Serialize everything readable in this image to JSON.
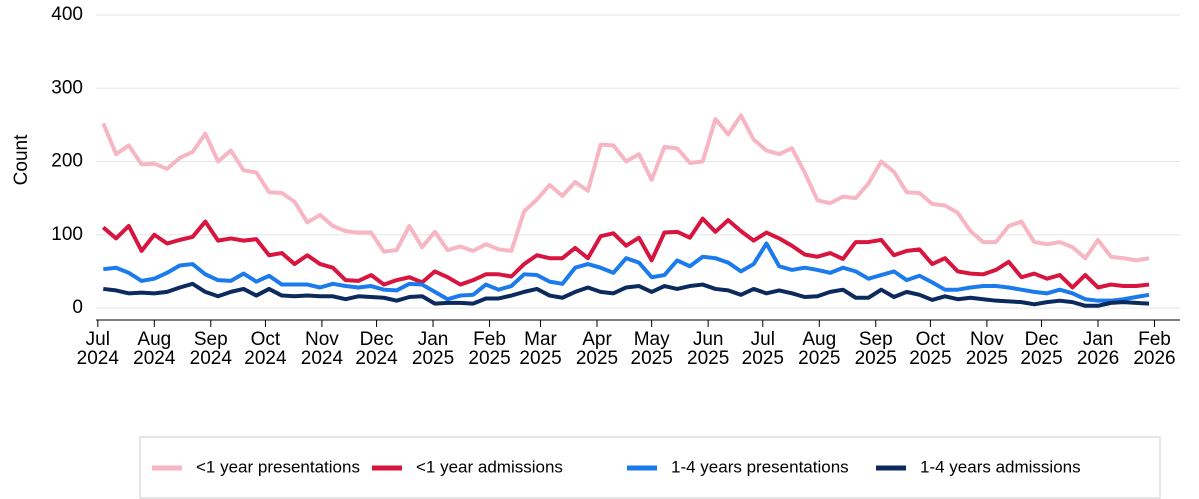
{
  "chart_data": {
    "type": "line",
    "y_label": "Count",
    "x": [
      "2024-07-04",
      "2024-07-11",
      "2024-07-18",
      "2024-07-25",
      "2024-08-01",
      "2024-08-08",
      "2024-08-15",
      "2024-08-22",
      "2024-08-29",
      "2024-09-05",
      "2024-09-12",
      "2024-09-19",
      "2024-09-26",
      "2024-10-03",
      "2024-10-10",
      "2024-10-17",
      "2024-10-24",
      "2024-10-31",
      "2024-11-07",
      "2024-11-14",
      "2024-11-21",
      "2024-11-28",
      "2024-12-05",
      "2024-12-12",
      "2024-12-19",
      "2024-12-26",
      "2025-01-02",
      "2025-01-09",
      "2025-01-16",
      "2025-01-23",
      "2025-01-30",
      "2025-02-06",
      "2025-02-13",
      "2025-02-20",
      "2025-02-27",
      "2025-03-06",
      "2025-03-13",
      "2025-03-20",
      "2025-03-27",
      "2025-04-03",
      "2025-04-10",
      "2025-04-17",
      "2025-04-24",
      "2025-05-01",
      "2025-05-08",
      "2025-05-15",
      "2025-05-22",
      "2025-05-29",
      "2025-06-05",
      "2025-06-12",
      "2025-06-19",
      "2025-06-26",
      "2025-07-03",
      "2025-07-10",
      "2025-07-17",
      "2025-07-24",
      "2025-07-31",
      "2025-08-07",
      "2025-08-14",
      "2025-08-21",
      "2025-08-28",
      "2025-09-04",
      "2025-09-11",
      "2025-09-18",
      "2025-09-25",
      "2025-10-02",
      "2025-10-09",
      "2025-10-16",
      "2025-10-23",
      "2025-10-30",
      "2025-11-06",
      "2025-11-13",
      "2025-11-20",
      "2025-11-27",
      "2025-12-04",
      "2025-12-11",
      "2025-12-18",
      "2025-12-25",
      "2026-01-01",
      "2026-01-08",
      "2026-01-15",
      "2026-01-22",
      "2026-01-29"
    ],
    "series": [
      {
        "name": "<1 year presentations",
        "color": "#f7b6c3",
        "values": [
          252,
          210,
          222,
          196,
          197,
          190,
          205,
          213,
          238,
          200,
          215,
          188,
          185,
          158,
          157,
          145,
          117,
          127,
          112,
          105,
          103,
          103,
          77,
          79,
          112,
          83,
          104,
          79,
          84,
          78,
          87,
          80,
          78,
          132,
          148,
          168,
          153,
          172,
          160,
          223,
          222,
          200,
          210,
          175,
          220,
          218,
          198,
          200,
          258,
          237,
          263,
          230,
          215,
          210,
          218,
          185,
          147,
          143,
          152,
          150,
          170,
          200,
          186,
          158,
          157,
          142,
          140,
          130,
          105,
          90,
          90,
          112,
          118,
          90,
          87,
          90,
          83,
          68,
          93,
          70,
          68,
          65,
          68
        ]
      },
      {
        "name": "<1 year admissions",
        "color": "#d7153e",
        "values": [
          110,
          95,
          112,
          78,
          100,
          88,
          93,
          97,
          118,
          92,
          95,
          92,
          94,
          72,
          75,
          60,
          72,
          60,
          55,
          38,
          37,
          45,
          32,
          38,
          42,
          35,
          50,
          42,
          32,
          38,
          46,
          46,
          43,
          60,
          72,
          68,
          68,
          82,
          68,
          98,
          102,
          85,
          96,
          65,
          103,
          104,
          96,
          122,
          104,
          120,
          105,
          92,
          103,
          95,
          85,
          73,
          70,
          75,
          67,
          90,
          90,
          93,
          72,
          78,
          80,
          60,
          68,
          50,
          47,
          46,
          52,
          63,
          42,
          47,
          40,
          45,
          28,
          45,
          28,
          32,
          30,
          30,
          32
        ]
      },
      {
        "name": "1-4 years presentations",
        "color": "#1c7bec",
        "values": [
          53,
          55,
          48,
          37,
          40,
          48,
          58,
          60,
          46,
          38,
          37,
          47,
          36,
          44,
          32,
          32,
          32,
          28,
          33,
          30,
          28,
          30,
          25,
          24,
          33,
          32,
          22,
          12,
          17,
          18,
          32,
          25,
          30,
          46,
          45,
          36,
          33,
          55,
          60,
          55,
          48,
          68,
          62,
          42,
          45,
          65,
          57,
          70,
          68,
          62,
          50,
          60,
          88,
          57,
          52,
          55,
          52,
          48,
          55,
          50,
          40,
          45,
          50,
          38,
          44,
          35,
          25,
          25,
          28,
          30,
          30,
          28,
          25,
          22,
          20,
          25,
          20,
          12,
          10,
          10,
          12,
          15,
          18
        ]
      },
      {
        "name": "1-4 years admissions",
        "color": "#0c2a5e",
        "values": [
          26,
          24,
          20,
          21,
          20,
          22,
          28,
          33,
          22,
          16,
          22,
          26,
          17,
          26,
          17,
          16,
          17,
          16,
          16,
          12,
          16,
          15,
          14,
          10,
          15,
          16,
          6,
          7,
          7,
          6,
          13,
          13,
          17,
          22,
          26,
          17,
          14,
          22,
          28,
          22,
          20,
          28,
          30,
          22,
          30,
          26,
          30,
          32,
          26,
          24,
          18,
          26,
          20,
          24,
          20,
          15,
          16,
          22,
          25,
          14,
          14,
          25,
          15,
          22,
          18,
          11,
          16,
          12,
          14,
          12,
          10,
          9,
          8,
          5,
          8,
          10,
          8,
          3,
          3,
          7,
          8,
          7,
          6
        ]
      }
    ],
    "xlim": [
      "2024-06-30",
      "2026-02-15"
    ],
    "xticks": [
      {
        "value": "2024-07",
        "label": [
          "Jul",
          "2024"
        ]
      },
      {
        "value": "2024-08",
        "label": [
          "Aug",
          "2024"
        ]
      },
      {
        "value": "2024-09",
        "label": [
          "Sep",
          "2024"
        ]
      },
      {
        "value": "2024-10",
        "label": [
          "Oct",
          "2024"
        ]
      },
      {
        "value": "2024-11",
        "label": [
          "Nov",
          "2024"
        ]
      },
      {
        "value": "2024-12",
        "label": [
          "Dec",
          "2024"
        ]
      },
      {
        "value": "2025-01",
        "label": [
          "Jan",
          "2025"
        ]
      },
      {
        "value": "2025-02",
        "label": [
          "Feb",
          "2025"
        ]
      },
      {
        "value": "2025-03",
        "label": [
          "Mar",
          "2025"
        ]
      },
      {
        "value": "2025-04",
        "label": [
          "Apr",
          "2025"
        ]
      },
      {
        "value": "2025-05",
        "label": [
          "May",
          "2025"
        ]
      },
      {
        "value": "2025-06",
        "label": [
          "Jun",
          "2025"
        ]
      },
      {
        "value": "2025-07",
        "label": [
          "Jul",
          "2025"
        ]
      },
      {
        "value": "2025-08",
        "label": [
          "Aug",
          "2025"
        ]
      },
      {
        "value": "2025-09",
        "label": [
          "Sep",
          "2025"
        ]
      },
      {
        "value": "2025-10",
        "label": [
          "Oct",
          "2025"
        ]
      },
      {
        "value": "2025-11",
        "label": [
          "Nov",
          "2025"
        ]
      },
      {
        "value": "2025-12",
        "label": [
          "Dec",
          "2025"
        ]
      },
      {
        "value": "2026-01",
        "label": [
          "Jan",
          "2026"
        ]
      },
      {
        "value": "2026-02",
        "label": [
          "Feb",
          "2026"
        ]
      }
    ],
    "ylim": [
      0,
      400
    ],
    "yticks": [
      0,
      100,
      200,
      300,
      400
    ],
    "grid": true,
    "legend": "bottom"
  }
}
